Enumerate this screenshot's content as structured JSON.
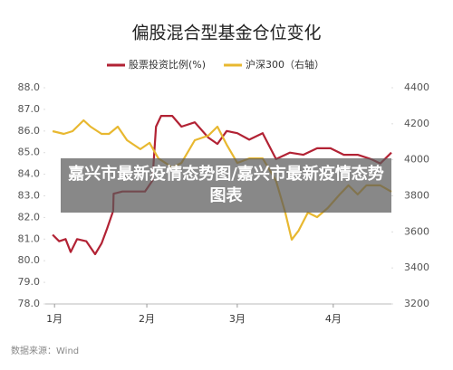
{
  "overlay_text": "嘉兴市最新疫情态势图/嘉兴市最新疫情态势图表",
  "chart_data": {
    "type": "line",
    "title": "偏股混合型基金仓位变化",
    "source": "数据来源：Wind",
    "xlim": [
      -2,
      73
    ],
    "xticks": [
      {
        "value": 0,
        "label": "1月"
      },
      {
        "value": 20,
        "label": "2月"
      },
      {
        "value": 39.6,
        "label": "3月"
      },
      {
        "value": 60.4,
        "label": "4月"
      }
    ],
    "ylim": [
      78,
      88
    ],
    "yticks": [
      {
        "value": 78,
        "label": "78.0"
      },
      {
        "value": 79,
        "label": "79.0"
      },
      {
        "value": 80,
        "label": "80.0"
      },
      {
        "value": 81,
        "label": "81.0"
      },
      {
        "value": 82,
        "label": "82.0"
      },
      {
        "value": 83,
        "label": "83.0"
      },
      {
        "value": 84,
        "label": "84.0"
      },
      {
        "value": 85,
        "label": "85.0"
      },
      {
        "value": 86,
        "label": "86.0"
      },
      {
        "value": 87,
        "label": "87.0"
      },
      {
        "value": 88,
        "label": "88.0"
      }
    ],
    "y2lim": [
      3200,
      4400
    ],
    "y2ticks": [
      3200,
      3400,
      3600,
      3800,
      4000,
      4200,
      4400
    ],
    "series": [
      {
        "name": "股票投资比例(%)",
        "color": "#b22234",
        "x": [
          -0.4,
          1,
          2.4,
          3.5,
          4.9,
          6.9,
          8.8,
          10.2,
          11.4,
          12.7,
          12.8,
          14.7,
          19.6,
          21.2,
          22,
          23.1,
          25.5,
          27.5,
          30.4,
          33.3,
          35.3,
          37.3,
          39.6,
          42.2,
          45.1,
          48,
          51,
          53.9,
          56.9,
          59.8,
          62.7,
          65.7,
          68.6,
          70.6,
          73
        ],
        "values": [
          81.2,
          80.9,
          81.0,
          80.4,
          81.0,
          80.9,
          80.3,
          80.8,
          81.5,
          82.3,
          83.1,
          83.2,
          83.2,
          83.7,
          86.2,
          86.7,
          86.7,
          86.2,
          86.4,
          85.7,
          85.4,
          86.0,
          85.9,
          85.6,
          85.9,
          84.7,
          85.0,
          84.9,
          85.2,
          85.2,
          84.9,
          84.9,
          84.7,
          84.5,
          85.0
        ]
      },
      {
        "name": "沪深300（右轴）",
        "color": "#e8b830",
        "axis": "y2",
        "x": [
          -0.4,
          2,
          3.9,
          6.3,
          7.8,
          10.2,
          11.8,
          13.7,
          15.7,
          18.6,
          20.6,
          22.5,
          25.5,
          27.5,
          30.4,
          33.3,
          35.3,
          37.3,
          39.6,
          42.2,
          45.1,
          48,
          50,
          51.4,
          52.9,
          54.9,
          56.9,
          59.2,
          61.8,
          63.7,
          65.7,
          67.6,
          70.6,
          73
        ],
        "values": [
          4159,
          4144,
          4159,
          4219,
          4184,
          4144,
          4144,
          4184,
          4109,
          4059,
          4094,
          4008,
          3958,
          3983,
          4109,
          4134,
          4184,
          4084,
          3983,
          4008,
          4008,
          3883,
          3707,
          3557,
          3607,
          3707,
          3682,
          3732,
          3808,
          3858,
          3808,
          3858,
          3858,
          3823
        ]
      }
    ]
  }
}
